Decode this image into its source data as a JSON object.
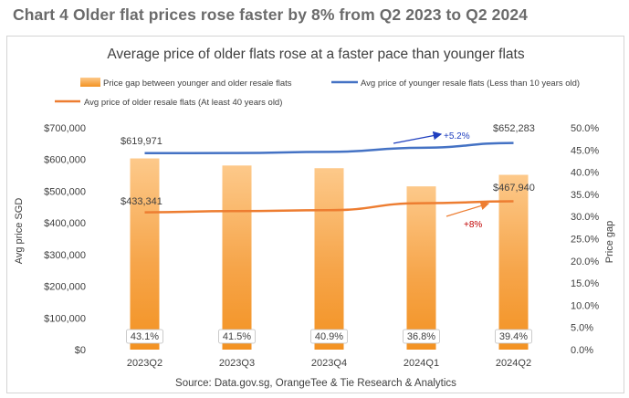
{
  "page_title": "Chart 4 Older flat prices rose faster by 8% from Q2 2023 to Q2 2024",
  "chart_data": {
    "type": "bar",
    "title": "Average price of older flats rose at a faster pace than younger flats",
    "source": "Source: Data.gov.sg, OrangeTee & Tie Research & Analytics",
    "categories": [
      "2023Q2",
      "2023Q3",
      "2023Q4",
      "2024Q1",
      "2024Q2"
    ],
    "y_left": {
      "label": "Avg price SGD",
      "min": 0,
      "max": 700000,
      "step": 100000,
      "ticks": [
        "$0",
        "$100,000",
        "$200,000",
        "$300,000",
        "$400,000",
        "$500,000",
        "$600,000",
        "$700,000"
      ]
    },
    "y_right": {
      "label": "Price gap",
      "min": 0,
      "max": 50,
      "step": 5,
      "ticks": [
        "0.0%",
        "5.0%",
        "10.0%",
        "15.0%",
        "20.0%",
        "25.0%",
        "30.0%",
        "35.0%",
        "40.0%",
        "45.0%",
        "50.0%"
      ]
    },
    "series": [
      {
        "name": "Price gap between younger and older resale flats",
        "type": "bar",
        "axis": "right",
        "values": [
          43.1,
          41.5,
          40.9,
          36.8,
          39.4
        ],
        "labels": [
          "43.1%",
          "41.5%",
          "40.9%",
          "36.8%",
          "39.4%"
        ],
        "color": "#f39c2f"
      },
      {
        "name": "Avg price of younger resale flats (Less than 10 years old)",
        "type": "line",
        "axis": "left",
        "values": [
          619971,
          620500,
          624000,
          637000,
          652283
        ],
        "color": "#4472c4"
      },
      {
        "name": "Avg price of older resale flats (At least 40 years old)",
        "type": "line",
        "axis": "left",
        "values": [
          433341,
          437000,
          440000,
          462000,
          467940
        ],
        "color": "#ed7d31"
      }
    ],
    "annotations": [
      {
        "text": "$619,971",
        "series": 1,
        "point": 0
      },
      {
        "text": "$652,283",
        "series": 1,
        "point": 4
      },
      {
        "text": "$433,341",
        "series": 2,
        "point": 0
      },
      {
        "text": "$467,940",
        "series": 2,
        "point": 4
      },
      {
        "text": "+5.2%",
        "color": "#1f3fbf"
      },
      {
        "text": "+8%",
        "color": "#c00000"
      }
    ],
    "legend_position": "top",
    "grid": false
  }
}
